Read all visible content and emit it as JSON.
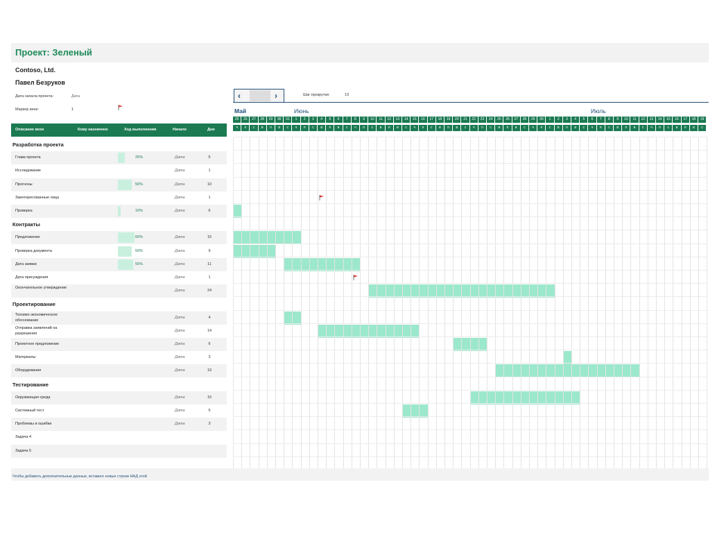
{
  "project_title": "Проект: Зеленый",
  "company": "Contoso, Ltd.",
  "manager": "Павел Безруков",
  "project_start": {
    "label": "Дата начала проекта:",
    "value": "Дата"
  },
  "week_marker": {
    "label": "Маркер вехи:",
    "value": "1"
  },
  "scroll_step": {
    "label": "Шаг прокрутки:",
    "value": "13"
  },
  "colors": {
    "accent": "#1b7a52",
    "bar": "#9ce8cc",
    "progress": "#c9f0df",
    "title": "#1e8a5a",
    "flag": "#e03c31"
  },
  "months": [
    "Май",
    "Июнь",
    "Июль"
  ],
  "day_numbers": [
    "25",
    "26",
    "27",
    "28",
    "29",
    "30",
    "31",
    "1",
    "2",
    "3",
    "4",
    "5",
    "6",
    "7",
    "8",
    "9",
    "10",
    "11",
    "12",
    "13",
    "14",
    "15",
    "16",
    "17",
    "18",
    "19",
    "20",
    "21",
    "22",
    "23",
    "24",
    "25",
    "26",
    "27",
    "28",
    "29",
    "30",
    "1",
    "2",
    "3",
    "4",
    "5",
    "6",
    "7",
    "8",
    "9",
    "10",
    "11",
    "12",
    "13",
    "14",
    "15",
    "16",
    "17",
    "18",
    "19"
  ],
  "day_letters": [
    "ч",
    "п",
    "с",
    "в",
    "п",
    "в",
    "с",
    "ч",
    "п",
    "с",
    "в",
    "п",
    "в",
    "с",
    "ч",
    "п",
    "с",
    "в",
    "п",
    "в",
    "с",
    "ч",
    "п",
    "с",
    "в",
    "п",
    "в",
    "с",
    "ч",
    "п",
    "с",
    "в",
    "п",
    "в",
    "с",
    "ч",
    "п",
    "с",
    "в",
    "п",
    "в",
    "с",
    "ч",
    "п",
    "с",
    "в",
    "п",
    "в",
    "с",
    "ч",
    "п",
    "с",
    "в",
    "п",
    "в",
    "с"
  ],
  "columns": {
    "task": "Описание вехи",
    "assigned": "Кому назначено",
    "progress": "Ход выполнения",
    "start": "Начало",
    "days": "Дни"
  },
  "rows": [
    {
      "type": "phase",
      "name": "Разработка проекта"
    },
    {
      "type": "task",
      "name": "Глава проекта",
      "progress": "25%",
      "pct": 25,
      "start": "Дата",
      "days": "5",
      "bar": null
    },
    {
      "type": "task",
      "name": "Исследование",
      "progress": "",
      "pct": 0,
      "start": "Дата",
      "days": "1",
      "bar": null
    },
    {
      "type": "task",
      "name": "Прогнозы",
      "progress": "50%",
      "pct": 50,
      "start": "Дата",
      "days": "10",
      "bar": null
    },
    {
      "type": "task",
      "name": "Заинтересованные лица",
      "progress": "",
      "pct": 0,
      "start": "Дата",
      "days": "1",
      "bar": null,
      "flag": 10
    },
    {
      "type": "task",
      "name": "Проверка",
      "progress": "10%",
      "pct": 10,
      "start": "Дата",
      "days": "6",
      "bar": [
        0,
        1
      ]
    },
    {
      "type": "phase",
      "name": "Контракты"
    },
    {
      "type": "task",
      "name": "Предложения",
      "progress": "60%",
      "pct": 60,
      "start": "Дата",
      "days": "15",
      "bar": [
        0,
        8
      ]
    },
    {
      "type": "task",
      "name": "Проверка документа",
      "progress": "50%",
      "pct": 50,
      "start": "Дата",
      "days": "9",
      "bar": [
        0,
        5
      ]
    },
    {
      "type": "task",
      "name": "Дата заявки",
      "progress": "55%",
      "pct": 55,
      "start": "Дата",
      "days": "11",
      "bar": [
        6,
        9
      ]
    },
    {
      "type": "task",
      "name": "Дата присуждения",
      "progress": "",
      "pct": 0,
      "start": "Дата",
      "days": "1",
      "bar": null,
      "flag": 14
    },
    {
      "type": "task",
      "name": "Окончательное утверждение",
      "progress": "",
      "pct": 0,
      "start": "Дата",
      "days": "24",
      "bar": [
        16,
        22
      ],
      "two": true
    },
    {
      "type": "phase",
      "name": "Проектирование"
    },
    {
      "type": "task",
      "name": "Технико-экономическое обоснование",
      "progress": "",
      "pct": 0,
      "start": "Дата",
      "days": "4",
      "bar": [
        6,
        2
      ],
      "two": true
    },
    {
      "type": "task",
      "name": "Отправка заявлений на разрешения",
      "progress": "",
      "pct": 0,
      "start": "Дата",
      "days": "14",
      "bar": [
        10,
        12
      ],
      "two": true
    },
    {
      "type": "task",
      "name": "Проектное предложение",
      "progress": "",
      "pct": 0,
      "start": "Дата",
      "days": "6",
      "bar": [
        26,
        4
      ]
    },
    {
      "type": "task",
      "name": "Материалы",
      "progress": "",
      "pct": 0,
      "start": "Дата",
      "days": "3",
      "bar": [
        39,
        1
      ]
    },
    {
      "type": "task",
      "name": "Оборудование",
      "progress": "",
      "pct": 0,
      "start": "Дата",
      "days": "19",
      "bar": [
        31,
        17
      ]
    },
    {
      "type": "phase",
      "name": "Тестирование"
    },
    {
      "type": "task",
      "name": "Окружающая среда",
      "progress": "",
      "pct": 0,
      "start": "Дата",
      "days": "15",
      "bar": [
        28,
        13
      ]
    },
    {
      "type": "task",
      "name": "Системный тест",
      "progress": "",
      "pct": 0,
      "start": "Дата",
      "days": "5",
      "bar": [
        20,
        3
      ]
    },
    {
      "type": "task",
      "name": "Проблемы и ошибки",
      "progress": "",
      "pct": 0,
      "start": "Дата",
      "days": "3",
      "bar": null
    },
    {
      "type": "task",
      "name": "Задача 4",
      "progress": "",
      "pct": 0,
      "start": "",
      "days": "",
      "bar": null
    },
    {
      "type": "task",
      "name": "Задача 5",
      "progress": "",
      "pct": 0,
      "start": "",
      "days": "",
      "bar": null
    }
  ],
  "footer": "Чтобы добавить дополнительные данные, вставьте новые строки НАД этой"
}
